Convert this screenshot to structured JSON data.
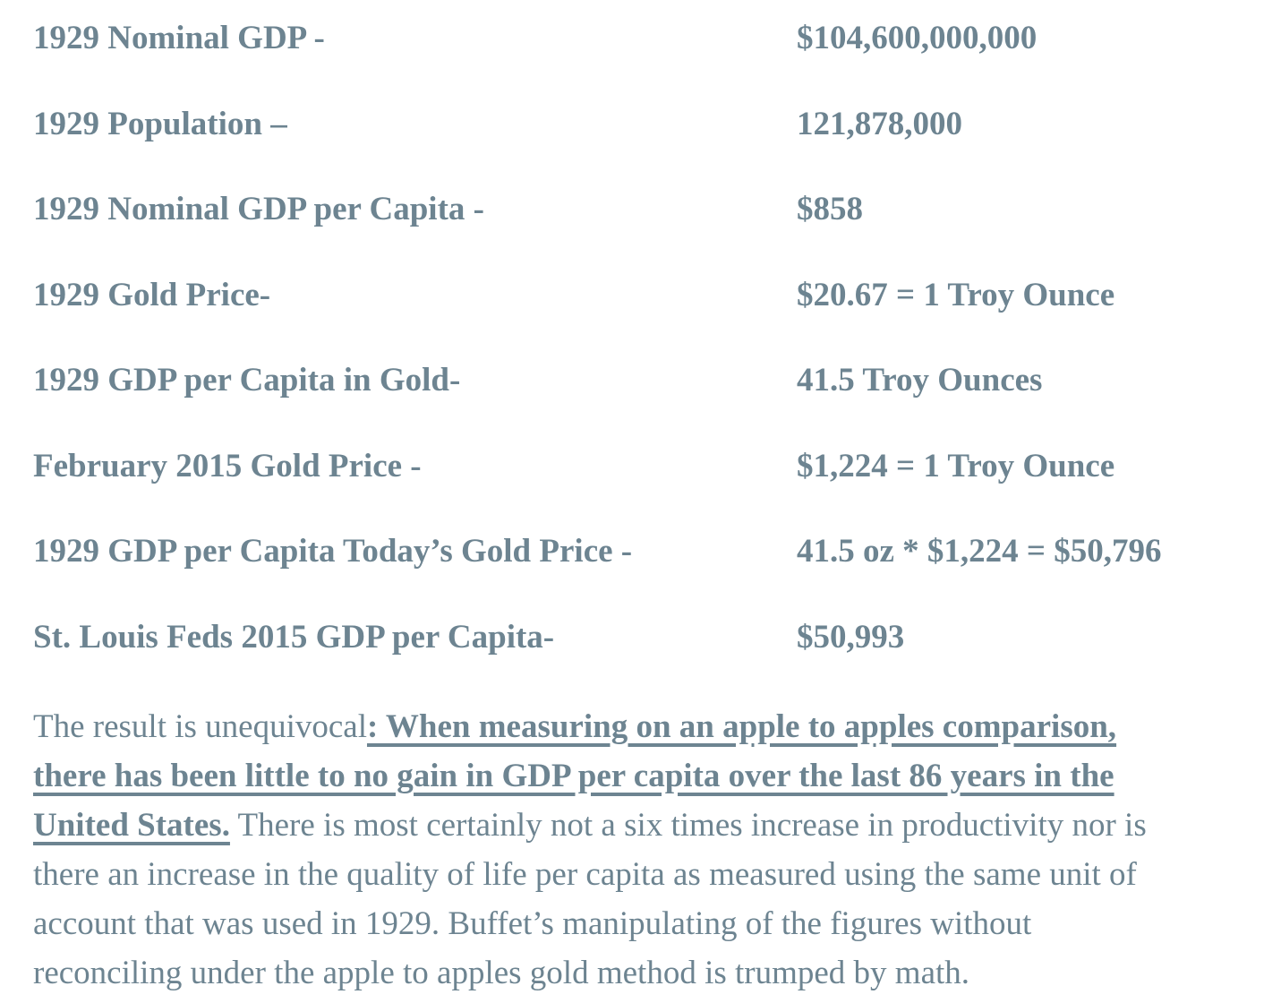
{
  "page": {
    "background_color": "#ffffff",
    "text_color": "#6d8491"
  },
  "stats": [
    {
      "label": "1929 Nominal GDP -",
      "value": "$104,600,000,000"
    },
    {
      "label": "1929 Population –",
      "value": "121,878,000"
    },
    {
      "label": "1929 Nominal GDP per Capita -",
      "value": "$858"
    },
    {
      "label": "1929 Gold Price-",
      "value": "$20.67 = 1 Troy Ounce"
    },
    {
      "label": "1929 GDP per Capita in Gold-",
      "value": "41.5 Troy Ounces"
    },
    {
      "label": "February 2015 Gold Price -",
      "value": "$1,224 = 1 Troy Ounce"
    },
    {
      "label": "1929 GDP per Capita Today’s Gold Price -",
      "value": "41.5 oz * $1,224 = $50,796"
    },
    {
      "label": "St. Louis Feds 2015 GDP per Capita-",
      "value": "$50,993"
    }
  ],
  "paragraph": {
    "intro": "The result is unequivocal",
    "emphasis": ": When measuring on an apple to apples comparison, there has been little to no gain in GDP per capita over the last 86 years in the United States.",
    "rest": " There is most certainly not a six times increase in productivity nor is there an increase in the quality of life per capita as measured using the same unit of account that was used in 1929. Buffet’s manipulating of the figures without reconciling under the apple to apples gold method is trumped by math."
  }
}
